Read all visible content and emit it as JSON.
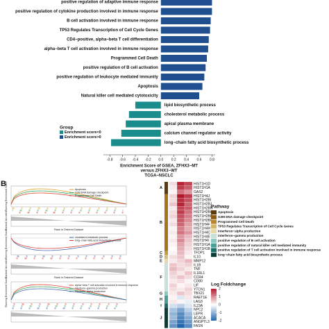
{
  "chart_data": {
    "type": "bar",
    "orientation": "horizontal",
    "categories": [
      "positive regulation of adaptive immune response",
      "positive regulation of cytokine production involved in immune response",
      "B cell activation involved in immune response",
      "TP53 Regulates Transcription of Cell Cycle Genes",
      "CD4−positive, alpha−beta T cell differentiation",
      "alpha−beta T cell activation involved in immune response",
      "Programmed Cell Death",
      "positive regulation of B cell activation",
      "positive regulation of leukocyte mediated immunity",
      "Apoptosis",
      "Natural killer cell mediated cytotoxicity",
      "lipid biosynthetic process",
      "cholesterol metabolic process",
      "apical plasma membrane",
      "calcium channel regulator activity",
      "long−chain fatty acid biosynthetic process"
    ],
    "series": [
      {
        "name": "Enrichment score<0",
        "color": "#1a8c8c",
        "values": [
          null,
          null,
          null,
          null,
          null,
          null,
          null,
          null,
          null,
          null,
          null,
          -0.4,
          -0.5,
          -0.55,
          -0.62,
          -0.78
        ]
      },
      {
        "name": "Enrichment score>0",
        "color": "#1f4f8e",
        "values": [
          0.8,
          0.8,
          0.78,
          0.77,
          0.75,
          0.74,
          0.72,
          0.7,
          0.68,
          0.65,
          0.6,
          null,
          null,
          null,
          null,
          null
        ]
      }
    ],
    "legend_title": "Group",
    "x_label": [
      "Enrichment Score of GSEA, ZFHX3−MT",
      "versus ZFHX3−WT",
      "TCGA−NSCLC"
    ],
    "xlim": [
      -0.9,
      0.85
    ],
    "xticks": [
      -0.8,
      -0.6,
      -0.4,
      -0.2,
      {
        "value": 0,
        "label": "0.0"
      },
      0.2,
      0.4,
      0.6,
      0.8
    ]
  },
  "panel_b": {
    "label": "B",
    "plots": [
      {
        "y_label": "Running Enrichment Score",
        "metric_label": "Ranked list metric",
        "x_label": "Rank in Ordered Dataset",
        "curves": [
          {
            "name": "Apoptosis",
            "color": "#e0a020"
          },
          {
            "name": "G2M DNA damage checkpoint",
            "color": "#3aa860"
          },
          {
            "name": "Programmed Cell Death",
            "color": "#e04030"
          }
        ]
      },
      {
        "y_label": "Running Enrichment Score",
        "metric_label": "Ranked list metric",
        "x_label": "Rank in Ordered Dataset",
        "curves": [
          {
            "name": "cholesterol metabolic process",
            "color": "#4a6ab0"
          },
          {
            "name": "long−chain fatty acid biosynthetic process",
            "color": "#e04030"
          }
        ]
      },
      {
        "y_label": "Running Enrichment Score",
        "curves": [
          {
            "name": "alpha−beta T cell activation involved in immune response",
            "color": "#e04030"
          },
          {
            "name": "interferon−gamma production",
            "color": "#3aa860"
          },
          {
            "name": "interferon−alpha production",
            "color": "#4a6ab0"
          }
        ]
      }
    ]
  },
  "panel_c": {
    "label": "C",
    "color_lim": [
      -2,
      2
    ],
    "groups": [
      {
        "label": "A",
        "color": "#5c3a0a",
        "genes": [
          "HIST1H1D",
          "HIST1H1A",
          "GAS2"
        ],
        "values": [
          [
            0.3,
            1.9,
            1.6
          ],
          [
            0.2,
            1.7,
            1.4
          ],
          [
            0.1,
            1.2,
            0.9
          ]
        ]
      },
      {
        "label": "B",
        "color": "#a8741e",
        "genes": [
          "HIST1H4J",
          "HIST1H2BI",
          "HIST1H2BJ",
          "HIST1H2BN",
          "HIST1H2BG",
          "HIST1H2BB",
          "HIST1H2BC",
          "HIST1H4F",
          "HIST1H4H",
          "HIST1H4C",
          "HIST1H4E",
          "HIST1H4I",
          "HIST1H1A",
          "HIST1H1B"
        ],
        "values": [
          [
            0.4,
            2.0,
            1.7
          ],
          [
            0.3,
            1.8,
            1.5
          ],
          [
            0.5,
            1.9,
            1.3
          ],
          [
            0.2,
            1.6,
            1.4
          ],
          [
            0.3,
            1.7,
            1.2
          ],
          [
            0.4,
            1.5,
            1.1
          ],
          [
            0.2,
            1.4,
            1.0
          ],
          [
            0.3,
            1.3,
            0.8
          ],
          [
            0.1,
            1.1,
            0.7
          ],
          [
            0.2,
            1.2,
            0.9
          ],
          [
            0.1,
            0.9,
            0.6
          ],
          [
            0.2,
            1.0,
            0.5
          ],
          [
            0.1,
            0.8,
            0.4
          ],
          [
            0.0,
            0.7,
            0.3
          ]
        ]
      },
      {
        "label": "C",
        "color": "#c89a48",
        "genes": [
          "TFDP1"
        ],
        "values": [
          [
            0.1,
            0.6,
            0.2
          ]
        ]
      },
      {
        "label": "D",
        "color": "#d8bc78",
        "genes": [
          "IL10"
        ],
        "values": [
          [
            0.3,
            0.5,
            0.1
          ]
        ]
      },
      {
        "label": "E",
        "color": "#e8d8a8",
        "genes": [
          "MMP12"
        ],
        "values": [
          [
            0.2,
            0.4,
            0.6
          ]
        ]
      },
      {
        "label": "F",
        "color": "#c8e0dc",
        "genes": [
          "IL1B",
          "TNF",
          "IL1RL1",
          "CCR4",
          "CD80",
          "LIF",
          "YTCN1"
        ],
        "values": [
          [
            0.5,
            0.3,
            0.4
          ],
          [
            0.6,
            0.4,
            0.2
          ],
          [
            0.4,
            0.2,
            0.5
          ],
          [
            0.3,
            0.5,
            0.3
          ],
          [
            0.2,
            0.3,
            0.1
          ],
          [
            0.4,
            0.1,
            0.2
          ],
          [
            0.3,
            0.2,
            0.4
          ]
        ]
      },
      {
        "label": "G",
        "color": "#8cc8c0",
        "genes": [
          "TBX21"
        ],
        "values": [
          [
            0.2,
            0.5,
            0.3
          ]
        ]
      },
      {
        "label": "H",
        "color": "#4aa098",
        "genes": [
          "RAET1E",
          "LAG3"
        ],
        "values": [
          [
            0.1,
            -0.3,
            0.2
          ],
          [
            0.2,
            0.1,
            -0.2
          ]
        ]
      },
      {
        "label": "I",
        "color": "#1a7068",
        "genes": [
          "IL23A"
        ],
        "values": [
          [
            -0.4,
            -0.6,
            -0.3
          ]
        ]
      },
      {
        "label": "J",
        "color": "#0a3c38",
        "genes": [
          "NPC2",
          "LEPR",
          "ACACA",
          "ANGPTL3",
          "FASN"
        ],
        "values": [
          [
            -0.8,
            -1.2,
            -0.6
          ],
          [
            -1.0,
            -1.5,
            -0.9
          ],
          [
            -0.9,
            -1.6,
            -1.1
          ],
          [
            -1.2,
            -1.8,
            -1.3
          ],
          [
            -1.4,
            -2.0,
            -1.5
          ]
        ]
      }
    ],
    "pathway_title": "Pathway",
    "pathways": [
      {
        "name": "Apoptosis",
        "color": "#5c3a0a"
      },
      {
        "name": "G2M DNA damage checkpoint",
        "color": "#8c5a14"
      },
      {
        "name": "Programmed Cell Death",
        "color": "#b8862e"
      },
      {
        "name": "TP53 Regulates Transcription of Cell Cycle Genes",
        "color": "#d4b46a"
      },
      {
        "name": "interferon−alpha production",
        "color": "#e8d8a8"
      },
      {
        "name": "interferon−gamma production",
        "color": "#c8e0dc"
      },
      {
        "name": "positive regulation of B cell activation",
        "color": "#8cc8c0"
      },
      {
        "name": "positive regulation of natural killer cell mediated immunity",
        "color": "#4aa098"
      },
      {
        "name": "positive regulation of T cell activation involved in immune response",
        "color": "#1a7068"
      },
      {
        "name": "long−chain fatty acid biosynthetic process",
        "color": "#0a3c38"
      }
    ],
    "colorbar_title": "Log Foldchange",
    "colorbar_ticks": [
      2,
      1,
      0,
      -1,
      -2
    ]
  }
}
